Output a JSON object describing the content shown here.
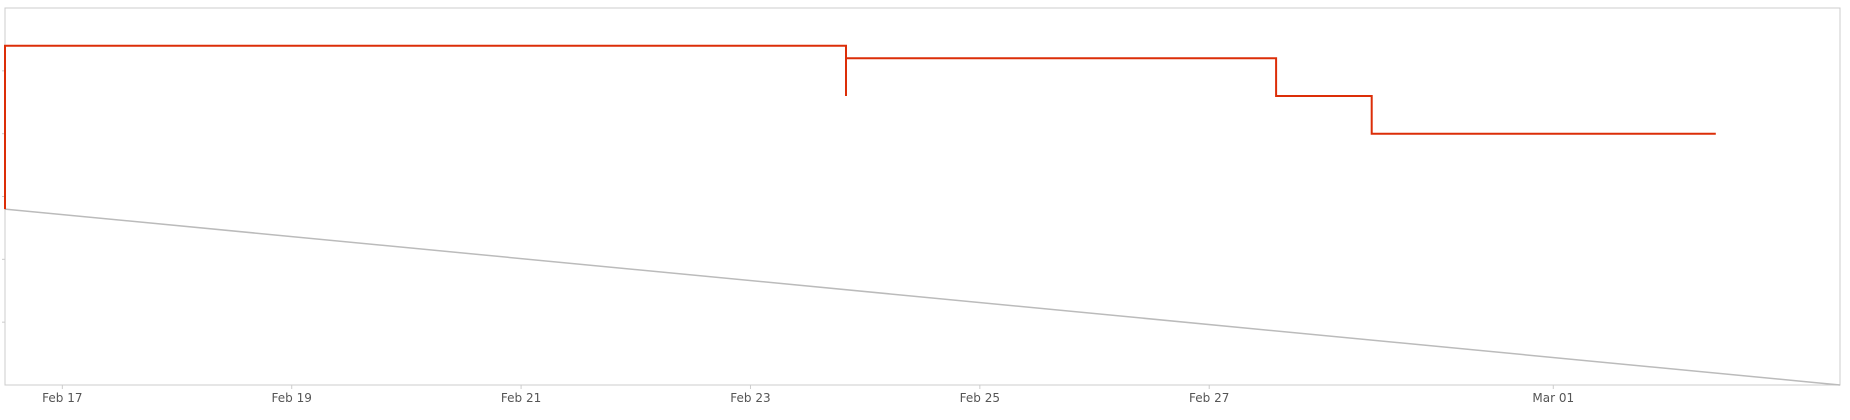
{
  "chart_data": {
    "type": "line",
    "title": "",
    "xlabel": "",
    "ylabel": "",
    "x_axis_type": "date",
    "x_ticks": [
      "Feb 17",
      "Feb 19",
      "Feb 21",
      "Feb 23",
      "Feb 25",
      "Feb 27",
      "Mar 01"
    ],
    "xlim": [
      "2024-02-16T12:00",
      "2024-03-03T12:00"
    ],
    "ylim": [
      0,
      6
    ],
    "y_tick_values": [
      1,
      2,
      3,
      4,
      5
    ],
    "y_tick_labels_shown": false,
    "grid": false,
    "legend": "none",
    "colors": {
      "remaining": "#dc2e08",
      "ideal": "#bbbbbb",
      "axis": "#cccccc",
      "tick_text": "#555555"
    },
    "series": [
      {
        "kind": "step",
        "points": [
          {
            "x": "2024-02-16T12:00",
            "y": 2.8
          },
          {
            "x": "2024-02-16T12:00",
            "y": 5.4
          },
          {
            "x": "2024-02-23T20:00",
            "y": 5.4
          },
          {
            "x": "2024-02-23T20:00",
            "y": 4.6
          },
          {
            "x": "2024-02-23T20:00",
            "y": 5.2
          },
          {
            "x": "2024-02-27T14:00",
            "y": 5.2
          },
          {
            "x": "2024-02-27T14:00",
            "y": 4.6
          },
          {
            "x": "2024-02-28T10:00",
            "y": 4.6
          },
          {
            "x": "2024-02-28T10:00",
            "y": 4.0
          },
          {
            "x": "2024-03-02T10:00",
            "y": 4.0
          }
        ]
      },
      {
        "kind": "line",
        "points": [
          {
            "x": "2024-02-16T12:00",
            "y": 2.8
          },
          {
            "x": "2024-03-03T12:00",
            "y": 0
          }
        ]
      }
    ]
  }
}
